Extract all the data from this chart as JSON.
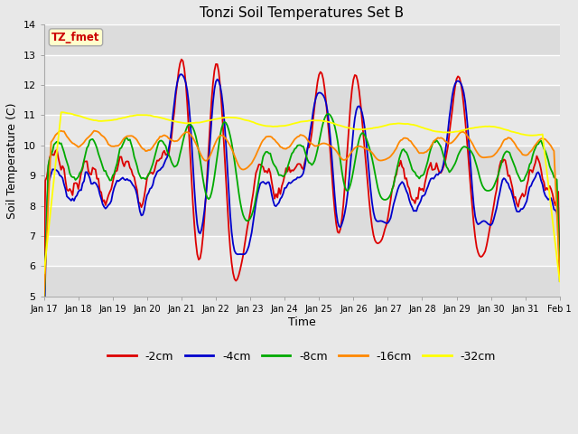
{
  "title": "Tonzi Soil Temperatures Set B",
  "xlabel": "Time",
  "ylabel": "Soil Temperature (C)",
  "ylim": [
    5.0,
    14.0
  ],
  "yticks": [
    5.0,
    6.0,
    7.0,
    8.0,
    9.0,
    10.0,
    11.0,
    12.0,
    13.0,
    14.0
  ],
  "legend_label": "TZ_fmet",
  "legend_box_facecolor": "#ffffcc",
  "legend_box_edgecolor": "#aaaaaa",
  "legend_text_color": "#cc0000",
  "series_colors": {
    "-2cm": "#dd0000",
    "-4cm": "#0000cc",
    "-8cm": "#00aa00",
    "-16cm": "#ff8800",
    "-32cm": "#ffff00"
  },
  "xtick_labels": [
    "Jan 17",
    "Jan 18",
    "Jan 19",
    "Jan 20",
    "Jan 21",
    "Jan 22",
    "Jan 23",
    "Jan 24",
    "Jan 25",
    "Jan 26",
    "Jan 27",
    "Jan 28",
    "Jan 29",
    "Jan 30",
    "Jan 31",
    "Feb 1"
  ],
  "fig_facecolor": "#e8e8e8",
  "plot_facecolor": "#e8e8e8",
  "grid_color": "#ffffff",
  "band_colors": [
    "#e0e0e0",
    "#ebebeb"
  ]
}
